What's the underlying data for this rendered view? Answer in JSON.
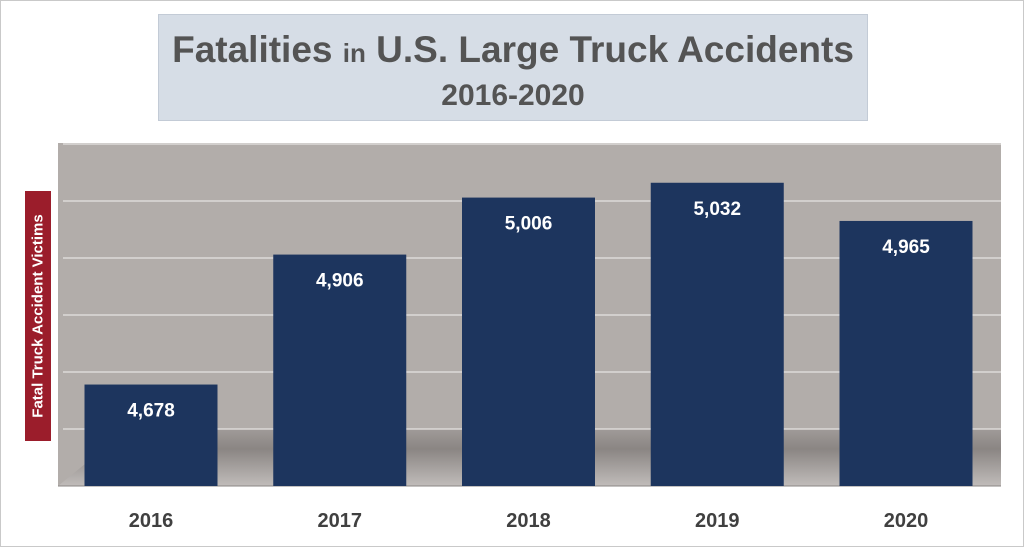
{
  "chart_data": {
    "type": "bar",
    "title_main": "Fatalities",
    "title_in": "in",
    "title_rest": "U.S. Large Truck Accidents",
    "subtitle": "2016-2020",
    "ylabel": "Fatal Truck Accident Victims",
    "xlabel": "",
    "categories": [
      "2016",
      "2017",
      "2018",
      "2019",
      "2020"
    ],
    "values": [
      4678,
      4906,
      5006,
      5032,
      4965
    ],
    "value_labels": [
      "4,678",
      "4,906",
      "5,006",
      "5,032",
      "4,965"
    ],
    "ylim": [
      4500,
      5100
    ],
    "grid": true,
    "legend": "none",
    "colors": {
      "bar": "#1d355e",
      "plot_background": "#b2adaa",
      "gridline": "#e6e4e2",
      "ylabel_background": "#9b1d2b",
      "title_background": "#d6dde6",
      "title_text": "#545454",
      "value_text": "#ffffff",
      "tick_text": "#404040"
    }
  }
}
